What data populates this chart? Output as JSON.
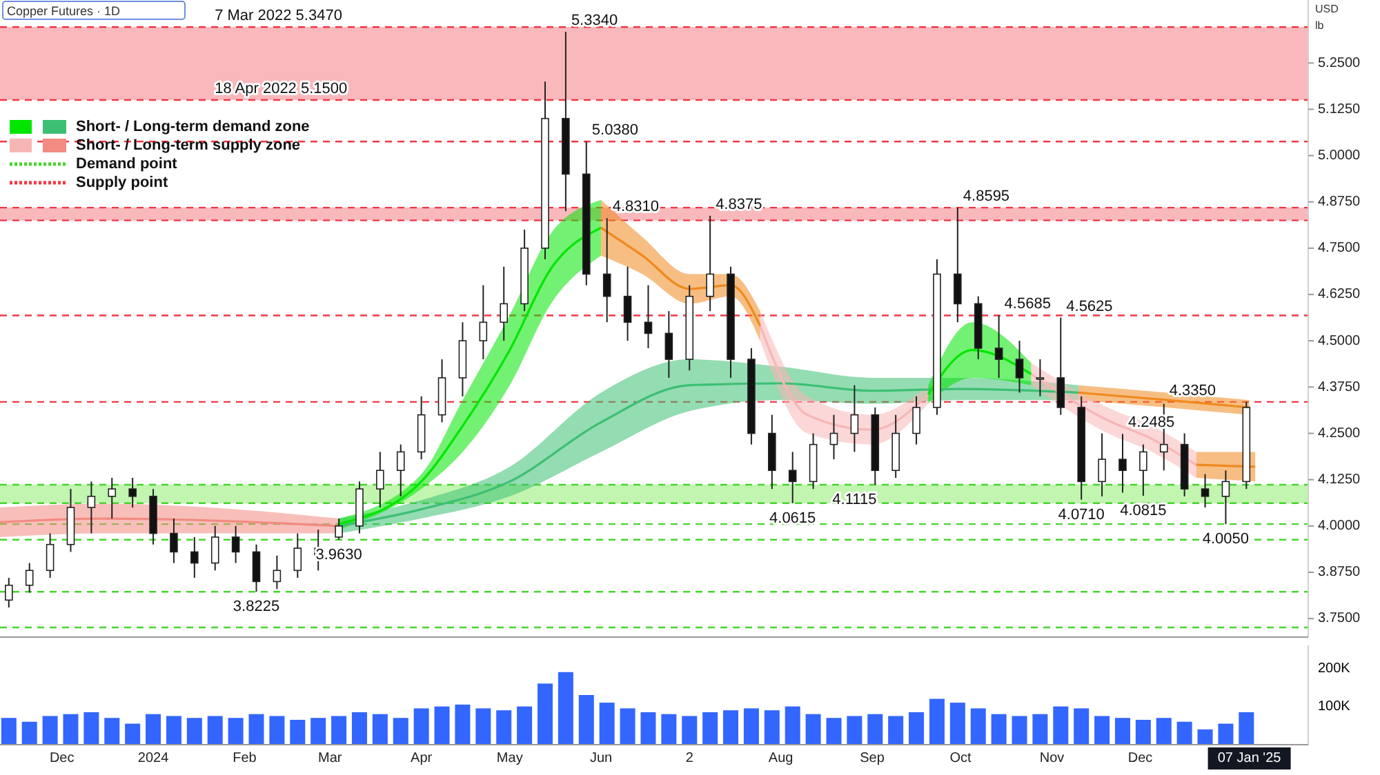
{
  "chart_data": [
    {
      "type": "candlestick",
      "title": "Copper Futures · 1D",
      "x": [
        "2023-11-13",
        "2023-11-20",
        "2023-11-27",
        "2023-12-04",
        "2023-12-11",
        "2023-12-18",
        "2023-12-25",
        "2024-01-01",
        "2024-01-08",
        "2024-01-15",
        "2024-01-22",
        "2024-01-29",
        "2024-02-05",
        "2024-02-12",
        "2024-02-19",
        "2024-02-26",
        "2024-03-04",
        "2024-03-11",
        "2024-03-18",
        "2024-03-25",
        "2024-04-01",
        "2024-04-08",
        "2024-04-15",
        "2024-04-22",
        "2024-04-29",
        "2024-05-06",
        "2024-05-13",
        "2024-05-20",
        "2024-05-27",
        "2024-06-03",
        "2024-06-10",
        "2024-06-17",
        "2024-06-24",
        "2024-07-01",
        "2024-07-08",
        "2024-07-15",
        "2024-07-22",
        "2024-07-29",
        "2024-08-05",
        "2024-08-12",
        "2024-08-19",
        "2024-08-26",
        "2024-09-02",
        "2024-09-09",
        "2024-09-16",
        "2024-09-23",
        "2024-09-30",
        "2024-10-07",
        "2024-10-14",
        "2024-10-21",
        "2024-10-28",
        "2024-11-04",
        "2024-11-11",
        "2024-11-18",
        "2024-11-25",
        "2024-12-02",
        "2024-12-09",
        "2024-12-16",
        "2024-12-23",
        "2024-12-30",
        "2025-01-06"
      ],
      "ohlc": [
        [
          3.8,
          3.86,
          3.78,
          3.84
        ],
        [
          3.84,
          3.9,
          3.82,
          3.88
        ],
        [
          3.88,
          3.98,
          3.86,
          3.95
        ],
        [
          3.95,
          4.1,
          3.93,
          4.05
        ],
        [
          4.05,
          4.12,
          3.98,
          4.08
        ],
        [
          4.08,
          4.13,
          4.02,
          4.1
        ],
        [
          4.1,
          4.13,
          4.05,
          4.08
        ],
        [
          4.08,
          4.1,
          3.95,
          3.98
        ],
        [
          3.98,
          4.02,
          3.9,
          3.93
        ],
        [
          3.93,
          3.97,
          3.86,
          3.9
        ],
        [
          3.9,
          4.0,
          3.88,
          3.97
        ],
        [
          3.97,
          4.0,
          3.9,
          3.93
        ],
        [
          3.93,
          3.95,
          3.8225,
          3.85
        ],
        [
          3.85,
          3.92,
          3.83,
          3.88
        ],
        [
          3.88,
          3.98,
          3.86,
          3.94
        ],
        [
          3.92,
          3.99,
          3.88,
          3.94
        ],
        [
          3.97,
          4.02,
          3.963,
          4.0
        ],
        [
          4.0,
          4.12,
          3.98,
          4.1
        ],
        [
          4.1,
          4.2,
          4.05,
          4.15
        ],
        [
          4.15,
          4.22,
          4.08,
          4.2
        ],
        [
          4.2,
          4.35,
          4.18,
          4.3
        ],
        [
          4.3,
          4.45,
          4.28,
          4.4
        ],
        [
          4.4,
          4.55,
          4.35,
          4.5
        ],
        [
          4.5,
          4.65,
          4.45,
          4.55
        ],
        [
          4.55,
          4.7,
          4.5,
          4.6
        ],
        [
          4.6,
          4.8,
          4.58,
          4.75
        ],
        [
          4.75,
          5.2,
          4.72,
          5.1
        ],
        [
          5.1,
          5.334,
          4.85,
          4.95
        ],
        [
          4.95,
          5.038,
          4.65,
          4.68
        ],
        [
          4.68,
          4.831,
          4.55,
          4.62
        ],
        [
          4.62,
          4.7,
          4.5,
          4.55
        ],
        [
          4.55,
          4.65,
          4.48,
          4.52
        ],
        [
          4.52,
          4.58,
          4.4,
          4.45
        ],
        [
          4.45,
          4.65,
          4.42,
          4.62
        ],
        [
          4.62,
          4.8375,
          4.58,
          4.68
        ],
        [
          4.68,
          4.7,
          4.4,
          4.45
        ],
        [
          4.45,
          4.48,
          4.22,
          4.25
        ],
        [
          4.25,
          4.3,
          4.1,
          4.15
        ],
        [
          4.15,
          4.2,
          4.0615,
          4.12
        ],
        [
          4.12,
          4.25,
          4.1,
          4.22
        ],
        [
          4.22,
          4.3,
          4.18,
          4.25
        ],
        [
          4.25,
          4.38,
          4.2,
          4.3
        ],
        [
          4.3,
          4.32,
          4.1115,
          4.15
        ],
        [
          4.15,
          4.3,
          4.13,
          4.25
        ],
        [
          4.25,
          4.35,
          4.22,
          4.32
        ],
        [
          4.32,
          4.72,
          4.3,
          4.68
        ],
        [
          4.68,
          4.8595,
          4.55,
          4.6
        ],
        [
          4.6,
          4.62,
          4.45,
          4.48
        ],
        [
          4.48,
          4.5685,
          4.4,
          4.45
        ],
        [
          4.45,
          4.5,
          4.36,
          4.4
        ],
        [
          4.4,
          4.45,
          4.35,
          4.4
        ],
        [
          4.4,
          4.5625,
          4.3,
          4.32
        ],
        [
          4.32,
          4.35,
          4.071,
          4.12
        ],
        [
          4.12,
          4.25,
          4.08,
          4.18
        ],
        [
          4.18,
          4.2485,
          4.09,
          4.15
        ],
        [
          4.15,
          4.22,
          4.0815,
          4.2
        ],
        [
          4.2,
          4.33,
          4.15,
          4.22
        ],
        [
          4.22,
          4.25,
          4.08,
          4.1
        ],
        [
          4.1,
          4.14,
          4.05,
          4.08
        ],
        [
          4.08,
          4.15,
          4.005,
          4.12
        ],
        [
          4.12,
          4.335,
          4.1,
          4.32
        ]
      ],
      "series": [
        {
          "type": "line",
          "color": "#f28b82",
          "x": [
            "2023-11-10",
            "2023-12-15",
            "2024-01-20",
            "2024-03-04"
          ],
          "values": [
            4.01,
            4.02,
            4.015,
            4.0
          ],
          "lower": [
            3.97,
            3.98,
            3.98,
            3.98
          ],
          "upper": [
            4.05,
            4.06,
            4.05,
            4.02
          ]
        },
        {
          "type": "line",
          "color": "#3cbf73",
          "x": [
            "2024-03-04",
            "2024-04-01",
            "2024-05-01",
            "2024-06-01",
            "2024-07-01",
            "2024-08-01",
            "2024-09-01",
            "2024-10-01",
            "2024-11-10"
          ],
          "values": [
            4.0,
            4.045,
            4.12,
            4.28,
            4.38,
            4.385,
            4.365,
            4.37,
            4.36
          ],
          "lower": [
            3.98,
            4.02,
            4.08,
            4.2,
            4.31,
            4.34,
            4.33,
            4.34,
            4.34
          ],
          "upper": [
            4.02,
            4.07,
            4.16,
            4.36,
            4.45,
            4.43,
            4.4,
            4.4,
            4.38
          ]
        },
        {
          "type": "line",
          "color": "#f0891e",
          "x": [
            "2024-11-10",
            "2024-12-10",
            "2025-01-07"
          ],
          "values": [
            4.36,
            4.34,
            4.32
          ],
          "lower": [
            4.34,
            4.32,
            4.3
          ],
          "upper": [
            4.38,
            4.36,
            4.34
          ]
        },
        {
          "type": "line",
          "color": "#00e600",
          "x": [
            "2024-03-04",
            "2024-04-01",
            "2024-04-15",
            "2024-05-01",
            "2024-05-15",
            "2024-06-01"
          ],
          "values": [
            4.005,
            4.12,
            4.27,
            4.475,
            4.695,
            4.805
          ],
          "lower": [
            3.99,
            4.1,
            4.2,
            4.38,
            4.6,
            4.73
          ],
          "upper": [
            4.02,
            4.14,
            4.34,
            4.57,
            4.79,
            4.88
          ]
        },
        {
          "type": "line",
          "color": "#f0891e",
          "x": [
            "2024-06-01",
            "2024-06-15",
            "2024-07-01",
            "2024-07-15",
            "2024-07-25"
          ],
          "values": [
            4.805,
            4.73,
            4.64,
            4.65,
            4.54
          ],
          "lower": [
            4.73,
            4.68,
            4.6,
            4.62,
            4.5
          ],
          "upper": [
            4.88,
            4.78,
            4.68,
            4.68,
            4.58
          ]
        },
        {
          "type": "line",
          "color": "#f7b6b6",
          "x": [
            "2024-07-25",
            "2024-08-10",
            "2024-09-01",
            "2024-09-20"
          ],
          "values": [
            4.54,
            4.3,
            4.26,
            4.355
          ],
          "lower": [
            4.5,
            4.25,
            4.22,
            4.33
          ],
          "upper": [
            4.58,
            4.35,
            4.3,
            4.38
          ]
        },
        {
          "type": "line",
          "color": "#00e600",
          "x": [
            "2024-09-20",
            "2024-10-05",
            "2024-10-25"
          ],
          "values": [
            4.355,
            4.475,
            4.41
          ],
          "lower": [
            4.33,
            4.4,
            4.38
          ],
          "upper": [
            4.38,
            4.55,
            4.44
          ]
        },
        {
          "type": "line",
          "color": "#f7b6b6",
          "x": [
            "2024-10-25",
            "2024-11-20",
            "2024-12-05",
            "2024-12-20"
          ],
          "values": [
            4.41,
            4.285,
            4.235,
            4.165
          ],
          "lower": [
            4.38,
            4.25,
            4.2,
            4.13
          ],
          "upper": [
            4.44,
            4.32,
            4.27,
            4.2
          ]
        },
        {
          "type": "line",
          "color": "#f0891e",
          "x": [
            "2024-12-20",
            "2025-01-09"
          ],
          "values": [
            4.165,
            4.16
          ],
          "lower": [
            4.13,
            4.12
          ],
          "upper": [
            4.2,
            4.2
          ]
        }
      ],
      "xlim": [
        "2023-11-10",
        "2025-01-27"
      ],
      "ylim": [
        3.7,
        5.42
      ],
      "yticks": [
        {
          "value": 3.75,
          "label": "3.7500"
        },
        {
          "value": 3.875,
          "label": "3.8750"
        },
        {
          "value": 4.0,
          "label": "4.0000"
        },
        {
          "value": 4.125,
          "label": "4.1250"
        },
        {
          "value": 4.25,
          "label": "4.2500"
        },
        {
          "value": 4.375,
          "label": "4.3750"
        },
        {
          "value": 4.5,
          "label": "4.5000"
        },
        {
          "value": 4.625,
          "label": "4.6250"
        },
        {
          "value": 4.75,
          "label": "4.7500"
        },
        {
          "value": 4.875,
          "label": "4.8750"
        },
        {
          "value": 5.0,
          "label": "5.0000"
        },
        {
          "value": 5.125,
          "label": "5.1250"
        },
        {
          "value": 5.25,
          "label": "5.2500"
        }
      ],
      "tick_labels": "y",
      "bands": [
        {
          "axis": "y",
          "from": 5.15,
          "to": 5.347,
          "color": "#f9b8bc"
        },
        {
          "axis": "y",
          "from": 4.825,
          "to": 4.8595,
          "color": "#f9b8bc"
        },
        {
          "axis": "y",
          "from": 4.0615,
          "to": 4.1115,
          "color": "#c2f5b0"
        }
      ],
      "ref_lines": [
        {
          "axis": "y",
          "value": 5.347,
          "color": "#f23645",
          "line_style": "dashed"
        },
        {
          "axis": "y",
          "value": 5.15,
          "color": "#f23645",
          "line_style": "dashed"
        },
        {
          "axis": "y",
          "value": 5.038,
          "color": "#f23645",
          "line_style": "dashed"
        },
        {
          "axis": "y",
          "value": 4.8595,
          "color": "#f23645",
          "line_style": "dashed"
        },
        {
          "axis": "y",
          "value": 4.825,
          "color": "#f23645",
          "line_style": "dashed"
        },
        {
          "axis": "y",
          "value": 4.5685,
          "color": "#f23645",
          "line_style": "dashed"
        },
        {
          "axis": "y",
          "value": 4.335,
          "color": "#f23645",
          "line_style": "dashed"
        },
        {
          "axis": "y",
          "value": 4.1115,
          "color": "#44d62c",
          "line_style": "dashed"
        },
        {
          "axis": "y",
          "value": 4.0615,
          "color": "#44d62c",
          "line_style": "dashed"
        },
        {
          "axis": "y",
          "value": 4.005,
          "color": "#44d62c",
          "line_style": "dashed"
        },
        {
          "axis": "y",
          "value": 3.963,
          "color": "#44d62c",
          "line_style": "dashed"
        },
        {
          "axis": "y",
          "value": 3.8225,
          "color": "#44d62c",
          "line_style": "dashed"
        },
        {
          "axis": "y",
          "value": 3.726,
          "color": "#44d62c",
          "line_style": "dashed"
        }
      ],
      "annotations": [
        "Short- / Long-term demand zone",
        "Short- / Long-term supply zone",
        "Demand point",
        "Supply point",
        "USD",
        "lb",
        {
          "text": "7 Mar 2022 5.3470",
          "x": "2024-01-20",
          "y": 5.347
        },
        {
          "text": "18 Apr 2022 5.1500",
          "x": "2024-01-20",
          "y": 5.15
        },
        {
          "text": "5.3340",
          "x": "2024-05-20",
          "y": 5.334
        },
        {
          "text": "5.0380",
          "x": "2024-05-27",
          "y": 5.038
        },
        {
          "text": "4.8310",
          "x": "2024-06-03",
          "y": 4.831
        },
        {
          "text": "4.8375",
          "x": "2024-07-08",
          "y": 4.8375
        },
        {
          "text": "4.8595",
          "x": "2024-09-30",
          "y": 4.8595
        },
        {
          "text": "4.5685",
          "x": "2024-10-14",
          "y": 4.5685
        },
        {
          "text": "4.5625",
          "x": "2024-11-04",
          "y": 4.5625
        },
        {
          "text": "4.3350",
          "x": "2024-12-09",
          "y": 4.335
        },
        {
          "text": "4.2485",
          "x": "2024-11-25",
          "y": 4.2485
        },
        {
          "text": "4.1115",
          "x": "2024-08-26",
          "y": 4.1115
        },
        {
          "text": "4.0615",
          "x": "2024-08-05",
          "y": 4.0615
        },
        {
          "text": "4.0710",
          "x": "2024-11-11",
          "y": 4.071
        },
        {
          "text": "4.0815",
          "x": "2024-12-02",
          "y": 4.0815
        },
        {
          "text": "4.0050",
          "x": "2024-12-30",
          "y": 4.005
        },
        {
          "text": "3.9630",
          "x": "2024-03-04",
          "y": 3.963
        },
        {
          "text": "3.8225",
          "x": "2024-02-05",
          "y": 3.8225
        }
      ]
    },
    {
      "type": "bar",
      "color": "#3366ff",
      "x": [
        "2023-11-13",
        "2023-11-20",
        "2023-11-27",
        "2023-12-04",
        "2023-12-11",
        "2023-12-18",
        "2023-12-25",
        "2024-01-01",
        "2024-01-08",
        "2024-01-15",
        "2024-01-22",
        "2024-01-29",
        "2024-02-05",
        "2024-02-12",
        "2024-02-19",
        "2024-02-26",
        "2024-03-04",
        "2024-03-11",
        "2024-03-18",
        "2024-03-25",
        "2024-04-01",
        "2024-04-08",
        "2024-04-15",
        "2024-04-22",
        "2024-04-29",
        "2024-05-06",
        "2024-05-13",
        "2024-05-20",
        "2024-05-27",
        "2024-06-03",
        "2024-06-10",
        "2024-06-17",
        "2024-06-24",
        "2024-07-01",
        "2024-07-08",
        "2024-07-15",
        "2024-07-22",
        "2024-07-29",
        "2024-08-05",
        "2024-08-12",
        "2024-08-19",
        "2024-08-26",
        "2024-09-02",
        "2024-09-09",
        "2024-09-16",
        "2024-09-23",
        "2024-09-30",
        "2024-10-07",
        "2024-10-14",
        "2024-10-21",
        "2024-10-28",
        "2024-11-04",
        "2024-11-11",
        "2024-11-18",
        "2024-11-25",
        "2024-12-02",
        "2024-12-09",
        "2024-12-16",
        "2024-12-23",
        "2024-12-30",
        "2025-01-06"
      ],
      "values": [
        70000,
        60000,
        75000,
        80000,
        85000,
        70000,
        55000,
        80000,
        75000,
        70000,
        75000,
        70000,
        80000,
        75000,
        65000,
        70000,
        75000,
        85000,
        80000,
        70000,
        95000,
        100000,
        105000,
        95000,
        90000,
        100000,
        160000,
        190000,
        130000,
        110000,
        95000,
        85000,
        80000,
        75000,
        85000,
        90000,
        95000,
        90000,
        100000,
        80000,
        70000,
        75000,
        80000,
        75000,
        85000,
        120000,
        110000,
        95000,
        80000,
        75000,
        80000,
        100000,
        95000,
        75000,
        70000,
        65000,
        70000,
        60000,
        40000,
        55000,
        85000
      ],
      "xlim": [
        "2023-11-10",
        "2025-01-27"
      ],
      "xticks": [
        {
          "value": "2023-12-01",
          "label": "Dec"
        },
        {
          "value": "2024-01-01",
          "label": "2024"
        },
        {
          "value": "2024-02-01",
          "label": "Feb"
        },
        {
          "value": "2024-03-01",
          "label": "Mar"
        },
        {
          "value": "2024-04-01",
          "label": "Apr"
        },
        {
          "value": "2024-05-01",
          "label": "May"
        },
        {
          "value": "2024-06-01",
          "label": "Jun"
        },
        {
          "value": "2024-07-01",
          "label": "2"
        },
        {
          "value": "2024-08-01",
          "label": "Aug"
        },
        {
          "value": "2024-09-01",
          "label": "Sep"
        },
        {
          "value": "2024-10-01",
          "label": "Oct"
        },
        {
          "value": "2024-11-01",
          "label": "Nov"
        },
        {
          "value": "2024-12-01",
          "label": "Dec"
        },
        {
          "value": "2025-01-07",
          "label": "07 Jan '25"
        }
      ],
      "ylim": [
        0,
        260000
      ],
      "yticks": [
        {
          "value": 100000,
          "label": "100K"
        },
        {
          "value": 200000,
          "label": "200K"
        }
      ]
    }
  ]
}
